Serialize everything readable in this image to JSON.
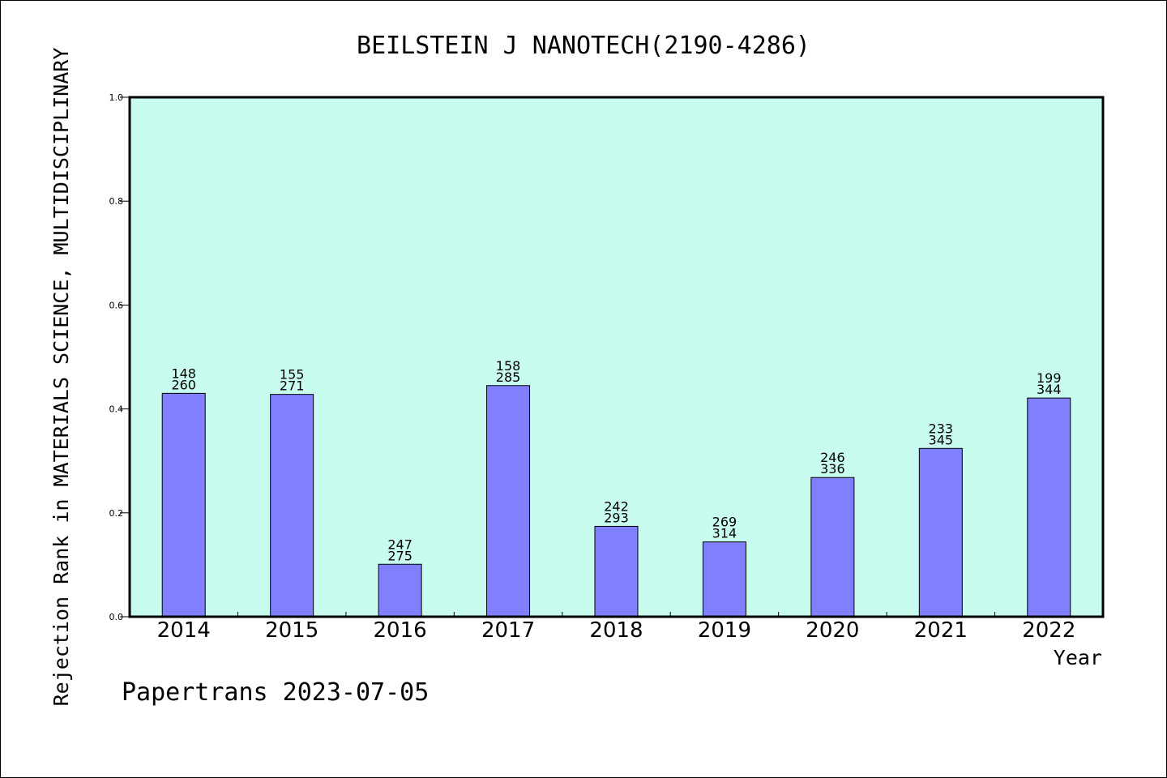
{
  "chart_data": {
    "type": "bar",
    "title": "BEILSTEIN J NANOTECH(2190-4286)",
    "xlabel": "Year",
    "ylabel": "Rejection Rank in MATERIALS SCIENCE, MULTIDISCIPLINARY",
    "footer": "Papertrans 2023-07-05",
    "categories": [
      "2014",
      "2015",
      "2016",
      "2017",
      "2018",
      "2019",
      "2020",
      "2021",
      "2022"
    ],
    "values": [
      0.43,
      0.428,
      0.101,
      0.445,
      0.174,
      0.144,
      0.268,
      0.324,
      0.421
    ],
    "rank_labels": [
      "148",
      "155",
      "247",
      "158",
      "242",
      "269",
      "246",
      "233",
      "199"
    ],
    "total_labels": [
      "260",
      "271",
      "275",
      "285",
      "293",
      "314",
      "336",
      "345",
      "344"
    ],
    "ylim": [
      0.0,
      1.0
    ],
    "yticks": [
      "0.0",
      "0.2",
      "0.4",
      "0.6",
      "0.8",
      "1.0"
    ],
    "grid": false,
    "colors": {
      "plot_background": "#c8fcee",
      "bar_fill": "#8080ff",
      "bar_stroke": "#000000",
      "axis": "#000000",
      "text": "#000000"
    }
  }
}
